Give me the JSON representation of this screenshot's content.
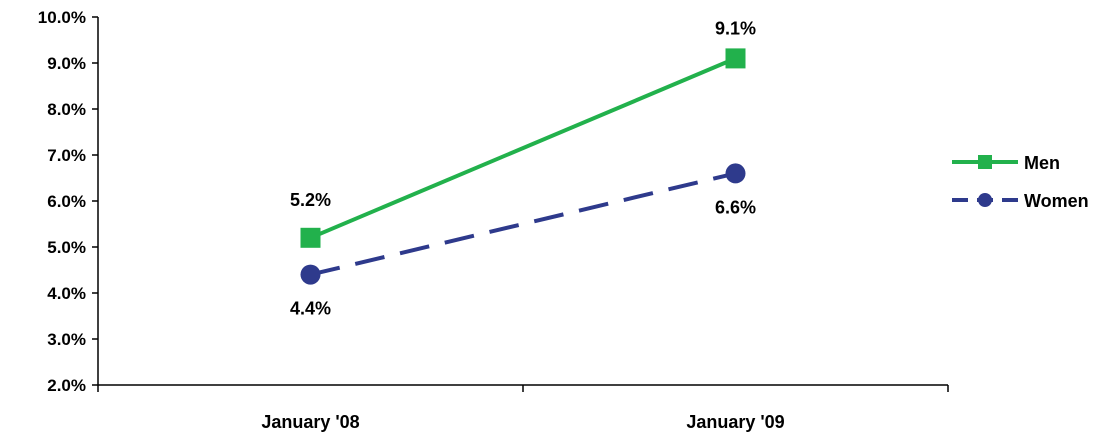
{
  "chart_data": {
    "type": "line",
    "title": "",
    "xlabel": "",
    "ylabel": "",
    "categories": [
      "January '08",
      "January '09"
    ],
    "ylim": [
      2.0,
      10.0
    ],
    "y_ticks": [
      "2.0%",
      "3.0%",
      "4.0%",
      "5.0%",
      "6.0%",
      "7.0%",
      "8.0%",
      "9.0%",
      "10.0%"
    ],
    "grid": false,
    "legend_position": "right",
    "series": [
      {
        "name": "Men",
        "values": [
          5.2,
          9.1
        ],
        "labels": [
          "5.2%",
          "9.1%"
        ],
        "color": "#22B14C",
        "line_style": "solid",
        "marker": "square"
      },
      {
        "name": "Women",
        "values": [
          4.4,
          6.6
        ],
        "labels": [
          "4.4%",
          "6.6%"
        ],
        "color": "#2E3A8C",
        "line_style": "dashed",
        "marker": "circle"
      }
    ]
  }
}
